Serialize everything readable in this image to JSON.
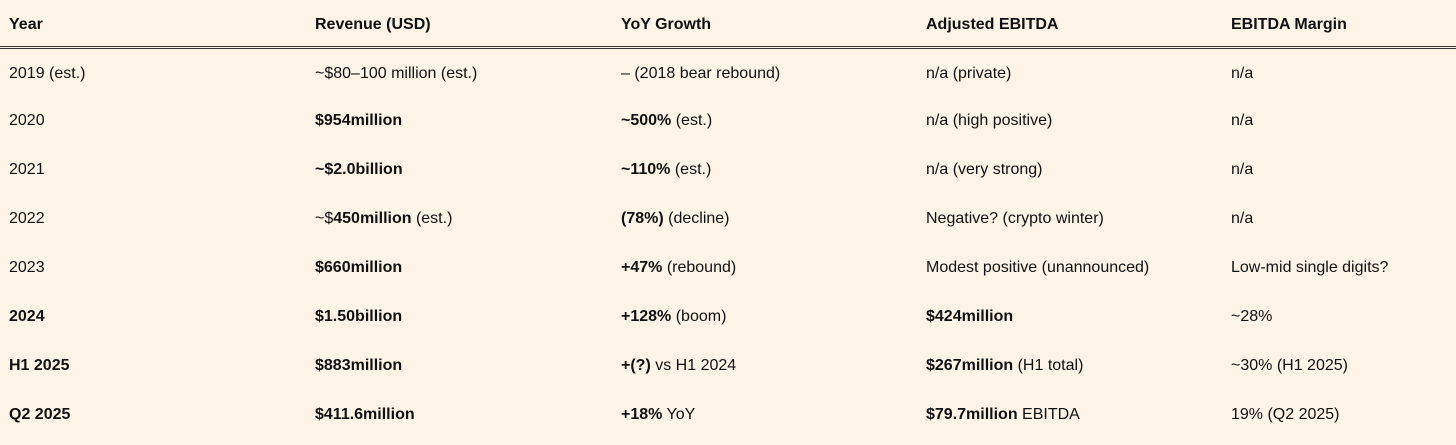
{
  "headers": [
    "Year",
    "Revenue (USD)",
    "YoY Growth",
    "Adjusted EBITDA",
    "EBITDA Margin"
  ],
  "rows": [
    [
      [
        {
          "t": "2019 (est.)"
        }
      ],
      [
        {
          "t": "~$80–100 million (est.)"
        }
      ],
      [
        {
          "t": "– (2018 bear rebound)"
        }
      ],
      [
        {
          "t": "n/a (private)"
        }
      ],
      [
        {
          "t": "n/a"
        }
      ]
    ],
    [
      [
        {
          "t": "2020"
        }
      ],
      [
        {
          "t": "$954million",
          "b": true
        }
      ],
      [
        {
          "t": "~500%",
          "b": true
        },
        {
          "t": " (est.)"
        }
      ],
      [
        {
          "t": "n/a (high positive)"
        }
      ],
      [
        {
          "t": "n/a"
        }
      ]
    ],
    [
      [
        {
          "t": "2021"
        }
      ],
      [
        {
          "t": "~$2.0billion",
          "b": true
        }
      ],
      [
        {
          "t": "~110%",
          "b": true
        },
        {
          "t": " (est.)"
        }
      ],
      [
        {
          "t": "n/a (very strong)"
        }
      ],
      [
        {
          "t": "n/a"
        }
      ]
    ],
    [
      [
        {
          "t": "2022"
        }
      ],
      [
        {
          "t": "~$"
        },
        {
          "t": "450million",
          "b": true
        },
        {
          "t": " (est.)"
        }
      ],
      [
        {
          "t": "(78%)",
          "b": true
        },
        {
          "t": " (decline)"
        }
      ],
      [
        {
          "t": "Negative? (crypto winter)"
        }
      ],
      [
        {
          "t": "n/a"
        }
      ]
    ],
    [
      [
        {
          "t": "2023"
        }
      ],
      [
        {
          "t": "$660million",
          "b": true
        }
      ],
      [
        {
          "t": "+47%",
          "b": true
        },
        {
          "t": " (rebound)"
        }
      ],
      [
        {
          "t": "Modest positive (unannounced)"
        }
      ],
      [
        {
          "t": "Low-mid single digits?"
        }
      ]
    ],
    [
      [
        {
          "t": "2024",
          "b": true
        }
      ],
      [
        {
          "t": "$1.50billion",
          "b": true
        }
      ],
      [
        {
          "t": "+128%",
          "b": true
        },
        {
          "t": " (boom)"
        }
      ],
      [
        {
          "t": "$424million",
          "b": true
        }
      ],
      [
        {
          "t": "~28%"
        }
      ]
    ],
    [
      [
        {
          "t": "H1 2025",
          "b": true
        }
      ],
      [
        {
          "t": "$883million",
          "b": true
        }
      ],
      [
        {
          "t": "+(?)",
          "b": true
        },
        {
          "t": " vs H1 2024"
        }
      ],
      [
        {
          "t": "$267million",
          "b": true
        },
        {
          "t": " (H1 total)"
        }
      ],
      [
        {
          "t": "~30% (H1 2025)"
        }
      ]
    ],
    [
      [
        {
          "t": "Q2 2025",
          "b": true
        }
      ],
      [
        {
          "t": "$411.6million",
          "b": true
        }
      ],
      [
        {
          "t": "+18%",
          "b": true
        },
        {
          "t": " YoY"
        }
      ],
      [
        {
          "t": "$79.7million",
          "b": true
        },
        {
          "t": " EBITDA"
        }
      ],
      [
        {
          "t": "19% (Q2 2025)"
        }
      ]
    ]
  ]
}
